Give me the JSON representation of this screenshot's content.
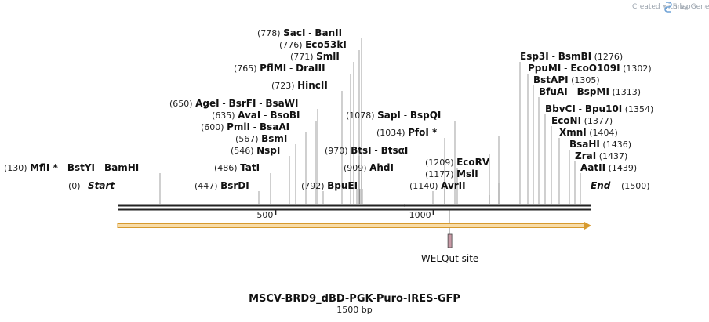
{
  "credit": {
    "created_by": "Created with",
    "brand": "SnapGene"
  },
  "title": "MSCV-BRD9_dBD-PGK-Puro-IRES-GFP",
  "length_label": "1500 bp",
  "sequence": {
    "start": 0,
    "end": 1500,
    "start_label": "Start",
    "end_label": "End"
  },
  "ticks": [
    500,
    1000
  ],
  "feature": {
    "name": "WELQut site",
    "position": 1052,
    "color": "#c89aa6"
  },
  "orf": {
    "from": 0,
    "to": 1500,
    "fill": "#f8dca8",
    "stroke": "#d79a2e"
  },
  "enzyme_sites": [
    {
      "position_label": "(130)",
      "positions": [
        130
      ],
      "names": [
        "MflI *",
        "BstYI",
        "BamHI"
      ]
    },
    {
      "position_label": "(447)",
      "positions": [
        447
      ],
      "names": [
        "BsrDI"
      ]
    },
    {
      "position_label": "(486)",
      "positions": [
        486
      ],
      "names": [
        "TatI"
      ]
    },
    {
      "position_label": "(546)",
      "positions": [
        546
      ],
      "names": [
        "NspI"
      ]
    },
    {
      "position_label": "(567)",
      "positions": [
        567
      ],
      "names": [
        "BsmI"
      ]
    },
    {
      "position_label": "(600)",
      "positions": [
        600
      ],
      "names": [
        "PmlI",
        "BsaAI"
      ]
    },
    {
      "position_label": "(635)",
      "positions": [
        635
      ],
      "names": [
        "AvaI",
        "BsoBI"
      ]
    },
    {
      "position_label": "(650)",
      "positions": [
        650
      ],
      "names": [
        "AgeI",
        "BsrFI",
        "BsaWI"
      ]
    },
    {
      "position_label": "(723)",
      "positions": [
        723
      ],
      "names": [
        "HincII"
      ]
    },
    {
      "position_label": "(765)",
      "positions": [
        765
      ],
      "names": [
        "PflMI",
        "DraIII"
      ]
    },
    {
      "position_label": "(771)",
      "positions": [
        771
      ],
      "names": [
        "SmlI"
      ]
    },
    {
      "position_label": "(776)",
      "positions": [
        776
      ],
      "names": [
        "Eco53kI"
      ]
    },
    {
      "position_label": "(778)",
      "positions": [
        778
      ],
      "names": [
        "SacI",
        "BanII"
      ]
    },
    {
      "position_label": "(792)",
      "positions": [
        792
      ],
      "names": [
        "BpuEI"
      ]
    },
    {
      "position_label": "(909)",
      "positions": [
        909
      ],
      "names": [
        "AhdI"
      ]
    },
    {
      "position_label": "(970)",
      "positions": [
        970
      ],
      "names": [
        "BtsI",
        "BtsαI"
      ]
    },
    {
      "position_label": "(1034)",
      "positions": [
        1034
      ],
      "names": [
        "PfoI *"
      ]
    },
    {
      "position_label": "(1078)",
      "positions": [
        1078
      ],
      "names": [
        "SapI",
        "BspQI"
      ]
    },
    {
      "position_label": "(1140)",
      "positions": [
        1140
      ],
      "names": [
        "AvrII"
      ]
    },
    {
      "position_label": "(1177)",
      "positions": [
        1177
      ],
      "names": [
        "MslI"
      ]
    },
    {
      "position_label": "(1209)",
      "positions": [
        1209
      ],
      "names": [
        "EcoRV"
      ]
    },
    {
      "position_label": "(1276)",
      "positions": [
        1276
      ],
      "names": [
        "Esp3I",
        "BsmBI"
      ]
    },
    {
      "position_label": "(1302)",
      "positions": [
        1302
      ],
      "names": [
        "PpuMI",
        "EcoO109I"
      ]
    },
    {
      "position_label": "(1305)",
      "positions": [
        1305
      ],
      "names": [
        "BstAPI"
      ]
    },
    {
      "position_label": "(1313)",
      "positions": [
        1313
      ],
      "names": [
        "BfuAI",
        "BspMI"
      ]
    },
    {
      "position_label": "(1354)",
      "positions": [
        1354
      ],
      "names": [
        "BbvCI",
        "Bpu10I"
      ]
    },
    {
      "position_label": "(1377)",
      "positions": [
        1377
      ],
      "names": [
        "EcoNI"
      ]
    },
    {
      "position_label": "(1404)",
      "positions": [
        1404
      ],
      "names": [
        "XmnI"
      ]
    },
    {
      "position_label": "(1436)",
      "positions": [
        1436
      ],
      "names": [
        "BsaHI"
      ]
    },
    {
      "position_label": "(1437)",
      "positions": [
        1437
      ],
      "names": [
        "ZraI"
      ]
    },
    {
      "position_label": "(1439)",
      "positions": [
        1439
      ],
      "names": [
        "AatII"
      ]
    }
  ]
}
